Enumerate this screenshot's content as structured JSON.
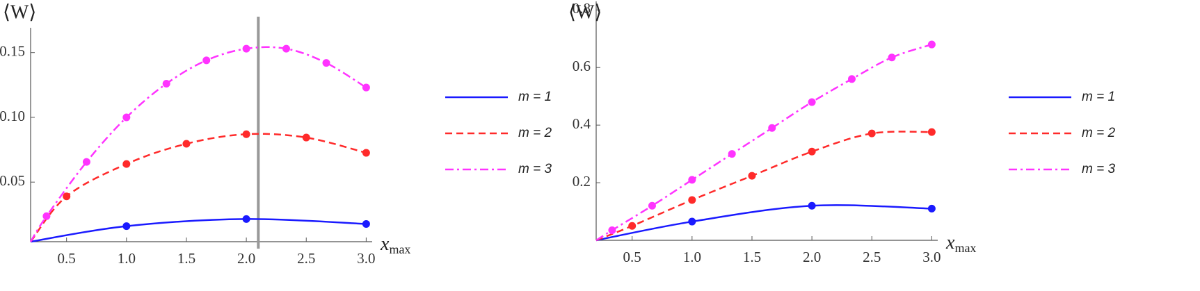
{
  "chart_data": [
    {
      "type": "line",
      "ylabel": "⟨W⟩",
      "xlabel": "x",
      "xlabel_sub": "max",
      "xlim": [
        0.2,
        3.05
      ],
      "ylim": [
        0.004,
        0.167
      ],
      "xticks": [
        0.5,
        {
          "value": 1,
          "label": "1.0"
        },
        1.5,
        {
          "value": 2,
          "label": "2.0"
        },
        2.5,
        {
          "value": 3,
          "label": "3.0"
        }
      ],
      "yticks": [
        0.05,
        {
          "value": 0.1,
          "label": "0.10"
        },
        0.15
      ],
      "vline": 2.1,
      "series": [
        {
          "name": "m = 1",
          "color": "#1a1aff",
          "dash": "solid",
          "x": [
            1,
            2,
            3
          ],
          "values": [
            0.016,
            0.0215,
            0.0177
          ]
        },
        {
          "name": "m = 2",
          "color": "#ff2a2a",
          "dash": "dashed",
          "x": [
            0.5,
            1,
            1.5,
            2,
            2.5,
            3
          ],
          "values": [
            0.039,
            0.064,
            0.0796,
            0.087,
            0.0844,
            0.0726
          ]
        },
        {
          "name": "m = 3",
          "color": "#ff33ff",
          "dash": "dashdot",
          "x": [
            0.333,
            0.667,
            1,
            1.333,
            1.667,
            2,
            2.333,
            2.667,
            3
          ],
          "values": [
            0.0237,
            0.0656,
            0.1,
            0.126,
            0.144,
            0.153,
            0.153,
            0.142,
            0.123
          ]
        }
      ]
    },
    {
      "type": "line",
      "ylabel": "⟨W⟩",
      "xlabel": "x",
      "xlabel_sub": "max",
      "xlim": [
        0.2,
        3.05
      ],
      "ylim": [
        0,
        0.82
      ],
      "xticks": [
        0.5,
        {
          "value": 1,
          "label": "1.0"
        },
        1.5,
        {
          "value": 2,
          "label": "2.0"
        },
        2.5,
        {
          "value": 3,
          "label": "3.0"
        }
      ],
      "yticks": [
        0.2,
        0.4,
        0.6,
        0.8
      ],
      "series": [
        {
          "name": "m = 1",
          "color": "#1a1aff",
          "dash": "solid",
          "x": [
            1,
            2,
            3
          ],
          "values": [
            0.065,
            0.12,
            0.11
          ]
        },
        {
          "name": "m = 2",
          "color": "#ff2a2a",
          "dash": "dashed",
          "x": [
            0.5,
            1,
            1.5,
            2,
            2.5,
            3
          ],
          "values": [
            0.05,
            0.14,
            0.224,
            0.308,
            0.371,
            0.376
          ]
        },
        {
          "name": "m = 3",
          "color": "#ff33ff",
          "dash": "dashdot",
          "x": [
            0.333,
            0.667,
            1,
            1.333,
            1.667,
            2,
            2.333,
            2.667,
            3
          ],
          "values": [
            0.035,
            0.12,
            0.21,
            0.3,
            0.39,
            0.48,
            0.56,
            0.635,
            0.68
          ]
        }
      ]
    }
  ]
}
